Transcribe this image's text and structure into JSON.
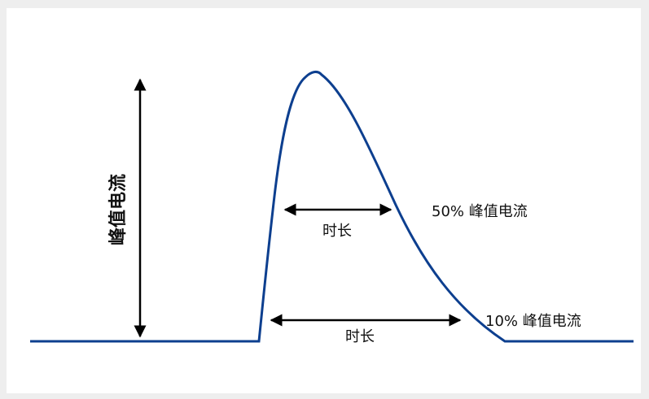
{
  "colors": {
    "curve": "#0d3f8f",
    "arrow": "#000000",
    "background": "#eeeeee",
    "panel": "#ffffff"
  },
  "labels": {
    "peak_current_vertical": "峰值电流",
    "duration_upper": "时长",
    "duration_lower": "时长",
    "fifty_percent": "50% 峰值电流",
    "ten_percent": "10% 峰值电流"
  },
  "levels": {
    "upper_marker_percent_of_peak": 50,
    "lower_marker_percent_of_peak": 10
  }
}
